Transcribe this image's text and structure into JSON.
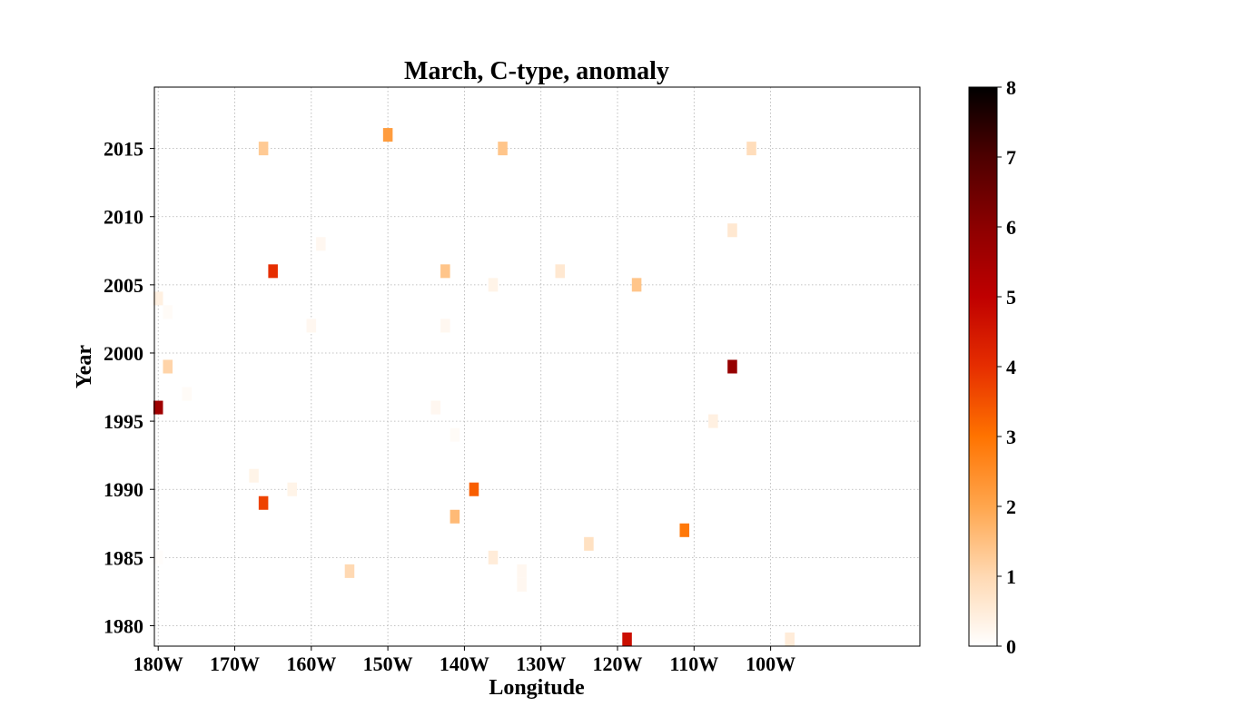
{
  "chart_data": {
    "type": "heatmap",
    "title": "March, C-type, anomaly",
    "xlabel": "Longitude",
    "ylabel": "Year",
    "xlim": [
      -180.5,
      -80.5
    ],
    "ylim": [
      1978.5,
      2019.5
    ],
    "xticks": [
      {
        "value": -180,
        "label": "180W"
      },
      {
        "value": -170,
        "label": "170W"
      },
      {
        "value": -160,
        "label": "160W"
      },
      {
        "value": -150,
        "label": "150W"
      },
      {
        "value": -140,
        "label": "140W"
      },
      {
        "value": -130,
        "label": "130W"
      },
      {
        "value": -120,
        "label": "120W"
      },
      {
        "value": -110,
        "label": "110W"
      },
      {
        "value": -100,
        "label": "100W"
      }
    ],
    "yticks": [
      {
        "value": 1980,
        "label": "1980"
      },
      {
        "value": 1985,
        "label": "1985"
      },
      {
        "value": 1990,
        "label": "1990"
      },
      {
        "value": 1995,
        "label": "1995"
      },
      {
        "value": 2000,
        "label": "2000"
      },
      {
        "value": 2005,
        "label": "2005"
      },
      {
        "value": 2010,
        "label": "2010"
      },
      {
        "value": 2015,
        "label": "2015"
      }
    ],
    "grid": true,
    "colormap": "gist_heat_r",
    "colorbar": {
      "vmin": 0,
      "vmax": 8,
      "ticks": [
        "0",
        "1",
        "2",
        "3",
        "4",
        "5",
        "6",
        "7",
        "8"
      ],
      "colors": [
        "#ffffff",
        "#ffd9b3",
        "#ffa64d",
        "#ff7300",
        "#e62e00",
        "#bf0000",
        "#8c0000",
        "#4d0000",
        "#000000"
      ]
    },
    "cell_width": 1.25,
    "points": [
      {
        "lon": -166.25,
        "year": 2015,
        "value": 1.3
      },
      {
        "lon": -150.0,
        "year": 2016,
        "value": 2.2
      },
      {
        "lon": -135.0,
        "year": 2015,
        "value": 1.4
      },
      {
        "lon": -102.5,
        "year": 2015,
        "value": 0.9
      },
      {
        "lon": -105.0,
        "year": 2009,
        "value": 0.6
      },
      {
        "lon": -158.75,
        "year": 2008,
        "value": 0.2
      },
      {
        "lon": -165.0,
        "year": 2006,
        "value": 4.0
      },
      {
        "lon": -142.5,
        "year": 2006,
        "value": 1.4
      },
      {
        "lon": -127.5,
        "year": 2006,
        "value": 0.6
      },
      {
        "lon": -136.25,
        "year": 2005,
        "value": 0.3
      },
      {
        "lon": -117.5,
        "year": 2005,
        "value": 1.4
      },
      {
        "lon": -180.0,
        "year": 2004,
        "value": 0.4
      },
      {
        "lon": -178.75,
        "year": 2003,
        "value": 0.1
      },
      {
        "lon": -160.0,
        "year": 2002,
        "value": 0.2
      },
      {
        "lon": -142.5,
        "year": 2002,
        "value": 0.2
      },
      {
        "lon": -178.75,
        "year": 1999,
        "value": 1.1
      },
      {
        "lon": -105.0,
        "year": 1999,
        "value": 5.8
      },
      {
        "lon": -176.25,
        "year": 1997,
        "value": 0.1
      },
      {
        "lon": -180.0,
        "year": 1996,
        "value": 5.6
      },
      {
        "lon": -143.75,
        "year": 1996,
        "value": 0.2
      },
      {
        "lon": -107.5,
        "year": 1995,
        "value": 0.4
      },
      {
        "lon": -141.25,
        "year": 1994,
        "value": 0.1
      },
      {
        "lon": -167.5,
        "year": 1991,
        "value": 0.3
      },
      {
        "lon": -162.5,
        "year": 1990,
        "value": 0.3
      },
      {
        "lon": -138.75,
        "year": 1990,
        "value": 3.3
      },
      {
        "lon": -166.25,
        "year": 1989,
        "value": 3.7
      },
      {
        "lon": -141.25,
        "year": 1988,
        "value": 1.6
      },
      {
        "lon": -111.25,
        "year": 1987,
        "value": 2.9
      },
      {
        "lon": -123.75,
        "year": 1986,
        "value": 0.8
      },
      {
        "lon": -136.25,
        "year": 1985,
        "value": 0.5
      },
      {
        "lon": -180.0,
        "year": 1985,
        "value": 0.05
      },
      {
        "lon": -155.0,
        "year": 1984,
        "value": 1.0
      },
      {
        "lon": -132.5,
        "year": 1984,
        "value": 0.2
      },
      {
        "lon": -132.5,
        "year": 1983,
        "value": 0.2
      },
      {
        "lon": -118.75,
        "year": 1979,
        "value": 4.7
      },
      {
        "lon": -97.5,
        "year": 1979,
        "value": 0.5
      }
    ]
  }
}
